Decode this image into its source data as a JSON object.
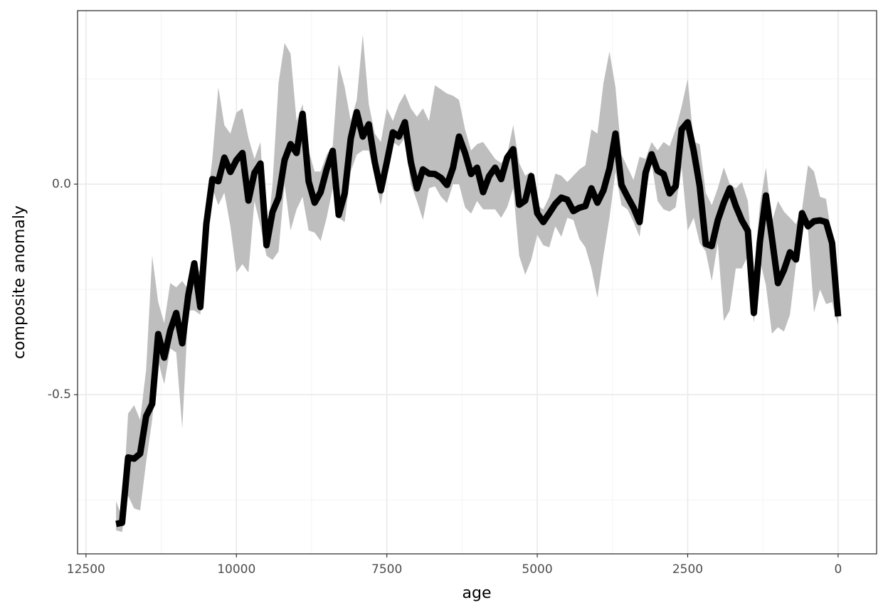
{
  "chart_data": {
    "type": "line",
    "xlabel": "age",
    "ylabel": "composite anomaly",
    "x": [
      12000,
      11900,
      11800,
      11700,
      11600,
      11500,
      11400,
      11300,
      11200,
      11100,
      11000,
      10900,
      10800,
      10700,
      10600,
      10500,
      10400,
      10300,
      10200,
      10100,
      10000,
      9900,
      9800,
      9700,
      9600,
      9500,
      9400,
      9300,
      9200,
      9100,
      9000,
      8900,
      8800,
      8700,
      8600,
      8500,
      8400,
      8300,
      8200,
      8100,
      8000,
      7900,
      7800,
      7700,
      7600,
      7500,
      7400,
      7300,
      7200,
      7100,
      7000,
      6900,
      6800,
      6700,
      6600,
      6500,
      6400,
      6300,
      6200,
      6100,
      6000,
      5900,
      5800,
      5700,
      5600,
      5500,
      5400,
      5300,
      5200,
      5100,
      5000,
      4900,
      4800,
      4700,
      4600,
      4500,
      4400,
      4300,
      4200,
      4100,
      4000,
      3900,
      3800,
      3700,
      3600,
      3500,
      3400,
      3300,
      3200,
      3100,
      3000,
      2900,
      2800,
      2700,
      2600,
      2500,
      2400,
      2300,
      2200,
      2100,
      2000,
      1900,
      1800,
      1700,
      1600,
      1500,
      1400,
      1300,
      1200,
      1100,
      1000,
      900,
      800,
      700,
      600,
      500,
      400,
      300,
      200,
      100,
      0
    ],
    "series": [
      {
        "color": "#000000",
        "ribbon_color": "#bebebe",
        "values": [
          -0.807,
          -0.804,
          -0.649,
          -0.652,
          -0.64,
          -0.551,
          -0.522,
          -0.356,
          -0.412,
          -0.348,
          -0.306,
          -0.378,
          -0.264,
          -0.188,
          -0.292,
          -0.095,
          0.012,
          0.007,
          0.063,
          0.029,
          0.057,
          0.074,
          -0.039,
          0.027,
          0.049,
          -0.145,
          -0.066,
          -0.032,
          0.057,
          0.095,
          0.074,
          0.167,
          0.007,
          -0.044,
          -0.019,
          0.035,
          0.079,
          -0.073,
          -0.022,
          0.108,
          0.171,
          0.113,
          0.142,
          0.052,
          -0.015,
          0.052,
          0.123,
          0.113,
          0.147,
          0.052,
          -0.01,
          0.035,
          0.025,
          0.024,
          0.015,
          -0.002,
          0.039,
          0.113,
          0.074,
          0.024,
          0.039,
          -0.019,
          0.019,
          0.039,
          0.012,
          0.063,
          0.083,
          -0.049,
          -0.039,
          0.019,
          -0.069,
          -0.09,
          -0.069,
          -0.047,
          -0.032,
          -0.037,
          -0.064,
          -0.056,
          -0.052,
          -0.01,
          -0.044,
          -0.015,
          0.037,
          0.12,
          -0.002,
          -0.03,
          -0.056,
          -0.09,
          0.027,
          0.071,
          0.032,
          0.024,
          -0.022,
          -0.005,
          0.13,
          0.147,
          0.079,
          -0.005,
          -0.142,
          -0.147,
          -0.086,
          -0.044,
          -0.01,
          -0.052,
          -0.086,
          -0.111,
          -0.306,
          -0.137,
          -0.027,
          -0.128,
          -0.235,
          -0.204,
          -0.162,
          -0.179,
          -0.069,
          -0.1,
          -0.088,
          -0.086,
          -0.09,
          -0.14,
          -0.314
        ],
        "upper": [
          -0.753,
          -0.79,
          -0.545,
          -0.525,
          -0.56,
          -0.44,
          -0.17,
          -0.28,
          -0.33,
          -0.235,
          -0.245,
          -0.23,
          -0.25,
          -0.19,
          -0.21,
          -0.06,
          0.06,
          0.23,
          0.14,
          0.12,
          0.17,
          0.18,
          0.11,
          0.06,
          0.1,
          -0.14,
          0.0,
          0.24,
          0.335,
          0.31,
          0.15,
          0.19,
          0.08,
          0.03,
          0.03,
          0.07,
          0.09,
          0.285,
          0.23,
          0.15,
          0.2,
          0.355,
          0.19,
          0.12,
          0.1,
          0.18,
          0.15,
          0.19,
          0.215,
          0.18,
          0.16,
          0.18,
          0.15,
          0.235,
          0.225,
          0.215,
          0.21,
          0.2,
          0.13,
          0.08,
          0.095,
          0.1,
          0.08,
          0.06,
          0.05,
          0.07,
          0.14,
          0.05,
          0.02,
          0.03,
          -0.05,
          -0.06,
          -0.03,
          0.025,
          0.02,
          0.005,
          0.02,
          0.035,
          0.045,
          0.13,
          0.12,
          0.24,
          0.315,
          0.23,
          0.07,
          0.04,
          0.01,
          0.065,
          0.06,
          0.1,
          0.08,
          0.1,
          0.09,
          0.13,
          0.185,
          0.25,
          0.1,
          0.095,
          -0.02,
          -0.05,
          -0.01,
          0.04,
          0.0,
          -0.01,
          0.005,
          -0.04,
          -0.21,
          -0.05,
          0.04,
          -0.09,
          -0.04,
          -0.065,
          -0.08,
          -0.095,
          -0.06,
          0.045,
          0.03,
          -0.03,
          -0.035,
          -0.13,
          -0.3
        ],
        "lower": [
          -0.822,
          -0.826,
          -0.74,
          -0.77,
          -0.775,
          -0.66,
          -0.56,
          -0.42,
          -0.475,
          -0.39,
          -0.4,
          -0.58,
          -0.3,
          -0.3,
          -0.31,
          -0.12,
          -0.01,
          -0.05,
          -0.02,
          -0.1,
          -0.21,
          -0.19,
          -0.21,
          -0.04,
          -0.1,
          -0.17,
          -0.18,
          -0.16,
          0.0,
          -0.11,
          -0.06,
          -0.03,
          -0.11,
          -0.115,
          -0.135,
          -0.08,
          -0.01,
          -0.08,
          -0.09,
          0.03,
          0.07,
          0.08,
          0.08,
          0.02,
          -0.05,
          0.03,
          0.1,
          0.09,
          0.11,
          0.0,
          -0.04,
          -0.085,
          -0.01,
          -0.005,
          -0.03,
          -0.045,
          0.0,
          0.0,
          -0.055,
          -0.07,
          -0.04,
          -0.06,
          -0.06,
          -0.06,
          -0.08,
          -0.055,
          -0.01,
          -0.17,
          -0.215,
          -0.18,
          -0.12,
          -0.145,
          -0.15,
          -0.1,
          -0.125,
          -0.08,
          -0.085,
          -0.13,
          -0.15,
          -0.2,
          -0.27,
          -0.17,
          -0.08,
          0.03,
          -0.05,
          -0.06,
          -0.09,
          -0.125,
          -0.02,
          0.05,
          -0.04,
          -0.06,
          -0.065,
          -0.055,
          0.04,
          -0.11,
          -0.08,
          -0.14,
          -0.16,
          -0.23,
          -0.14,
          -0.325,
          -0.3,
          -0.2,
          -0.2,
          -0.17,
          -0.33,
          -0.18,
          -0.24,
          -0.355,
          -0.34,
          -0.35,
          -0.31,
          -0.19,
          -0.08,
          -0.11,
          -0.305,
          -0.25,
          -0.285,
          -0.28,
          -0.335
        ]
      }
    ],
    "xlim": [
      12640,
      -640
    ],
    "xticks": [
      12500,
      10000,
      7500,
      5000,
      2500,
      0
    ],
    "minor_xticks": [
      11250,
      8750,
      6250,
      3750,
      1250
    ],
    "ylim": [
      -0.878,
      0.412
    ],
    "yticks": [
      {
        "value": -0.5,
        "label": "-0.5"
      },
      {
        "value": 0,
        "label": "0.0"
      }
    ],
    "minor_yticks": [
      -0.75,
      -0.25,
      0.25
    ],
    "grid": true
  }
}
